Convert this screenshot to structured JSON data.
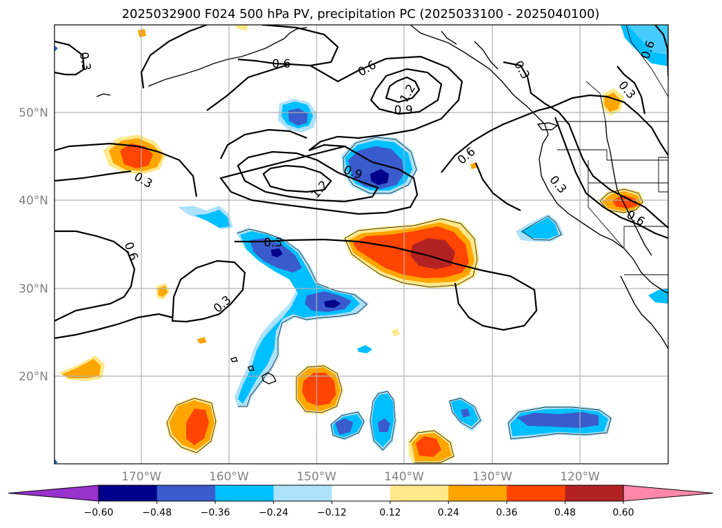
{
  "title": "2025032900 F024 500 hPa PV, precipitation PC (2025033100 - 2025040100)",
  "lat_labels": [
    "50°N",
    "40°N",
    "30°N",
    "20°N"
  ],
  "lon_labels": [
    "170°W",
    "160°W",
    "150°W",
    "140°W",
    "130°W",
    "120°W"
  ],
  "contour_labels": [
    "0.3",
    "0.6",
    "0.6",
    "0.3",
    "0.3",
    "0.6",
    "1.2",
    "0.9",
    "0.6",
    "0.9",
    "1.2",
    "0.3",
    "0.6",
    "0.3",
    "0.6",
    "0.3",
    "0.3",
    "0.6",
    "0.3"
  ],
  "colorbar": {
    "levels": [
      -0.6,
      -0.48,
      -0.36,
      -0.24,
      -0.12,
      0.12,
      0.24,
      0.36,
      0.48,
      0.6
    ],
    "tick_labels": [
      "−0.60",
      "−0.48",
      "−0.36",
      "−0.24",
      "−0.12",
      "0.12",
      "0.24",
      "0.36",
      "0.48",
      "0.60"
    ],
    "colors": [
      "#9932cc",
      "#00008b",
      "#3a5bcc",
      "#00bfff",
      "#ade2fa",
      "#ffffff",
      "#ffe88a",
      "#ffa500",
      "#ff4500",
      "#b22222",
      "#ff88aa"
    ]
  }
}
